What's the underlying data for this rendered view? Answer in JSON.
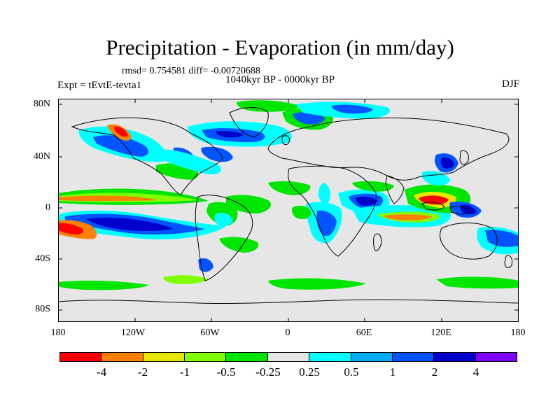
{
  "title": "Precipitation - Evaporation (in mm/day)",
  "stats": "rmsd= 0.754581 diff= -0.00720688",
  "period": "1040kyr BP - 0000kyr BP",
  "experiment": "Expt = tEvtE-tevta1",
  "season": "DJF",
  "lat_labels": [
    "80N",
    "40N",
    "0",
    "40S",
    "80S"
  ],
  "lon_labels": [
    "180",
    "120W",
    "60W",
    "0",
    "60E",
    "120E",
    "180"
  ],
  "colorbar": {
    "colors": [
      "#ff0000",
      "#ff8000",
      "#e6e600",
      "#80ff00",
      "#00e600",
      "#e6e6e6",
      "#00ffff",
      "#00aaff",
      "#0055ff",
      "#0000cd",
      "#8000ff"
    ],
    "labels": [
      "-4",
      "-2",
      "-1",
      "-0.5",
      "-0.25",
      "0.25",
      "0.5",
      "1",
      "2",
      "4"
    ]
  },
  "colors": {
    "ocean_neutral": "#e6e6e6",
    "coastline": "#000000"
  }
}
